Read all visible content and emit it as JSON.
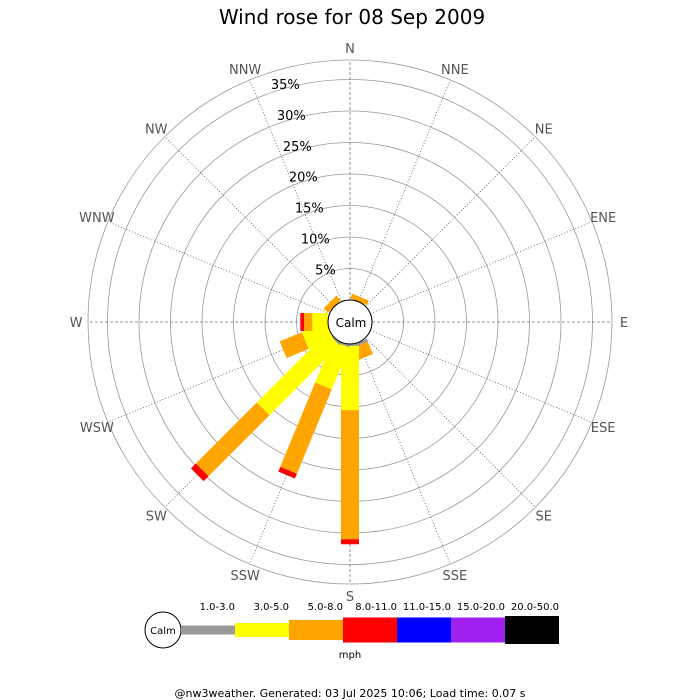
{
  "chart_data": {
    "type": "wind-rose",
    "title": "Wind rose for 08 Sep 2009",
    "directions": [
      "N",
      "NNE",
      "NE",
      "ENE",
      "E",
      "ESE",
      "SE",
      "SSE",
      "S",
      "SSW",
      "SW",
      "WSW",
      "W",
      "WNW",
      "NW",
      "NNW"
    ],
    "radial_ticks": [
      "5%",
      "10%",
      "15%",
      "20%",
      "25%",
      "30%",
      "35%"
    ],
    "radial_values": [
      5,
      10,
      15,
      20,
      25,
      30,
      35
    ],
    "calm_label": "Calm",
    "bins": [
      {
        "label": "1.0-3.0",
        "color": "#999999"
      },
      {
        "label": "3.0-5.0",
        "color": "#ffff00"
      },
      {
        "label": "5.0-8.0",
        "color": "#ffa500"
      },
      {
        "label": "8.0-11.0",
        "color": "#ff0000"
      },
      {
        "label": "11.0-15.0",
        "color": "#0000ff"
      },
      {
        "label": "15.0-20.0",
        "color": "#a020f0"
      },
      {
        "label": "20.0-50.0",
        "color": "#000000"
      }
    ],
    "units": "mph",
    "series": [
      {
        "dir": "N",
        "cum": [
          0,
          0,
          0,
          0,
          0,
          0,
          0
        ]
      },
      {
        "dir": "NNE",
        "cum": [
          0,
          0,
          0.8,
          0.8,
          0.8,
          0.8,
          0.8
        ]
      },
      {
        "dir": "NE",
        "cum": [
          0,
          0,
          0,
          0,
          0,
          0,
          0
        ]
      },
      {
        "dir": "ENE",
        "cum": [
          0,
          0,
          0,
          0,
          0,
          0,
          0
        ]
      },
      {
        "dir": "E",
        "cum": [
          0,
          0,
          0,
          0,
          0,
          0,
          0
        ]
      },
      {
        "dir": "ESE",
        "cum": [
          0,
          0,
          0,
          0,
          0,
          0,
          0
        ]
      },
      {
        "dir": "SE",
        "cum": [
          0,
          0,
          0,
          0,
          0,
          0,
          0
        ]
      },
      {
        "dir": "SSE",
        "cum": [
          0.5,
          0.5,
          2.6,
          2.6,
          2.6,
          2.6,
          2.6
        ]
      },
      {
        "dir": "S",
        "cum": [
          0.3,
          10.5,
          31.0,
          31.8,
          31.8,
          31.8,
          31.8
        ]
      },
      {
        "dir": "SSW",
        "cum": [
          0.3,
          7.5,
          22.0,
          22.8,
          22.8,
          22.8,
          22.8
        ]
      },
      {
        "dir": "SW",
        "cum": [
          0.3,
          16.0,
          29.7,
          30.8,
          30.8,
          30.8,
          30.8
        ]
      },
      {
        "dir": "WSW",
        "cum": [
          0,
          4.2,
          8.0,
          8.0,
          8.0,
          8.0,
          8.0
        ]
      },
      {
        "dir": "W",
        "cum": [
          0,
          2.5,
          3.8,
          4.4,
          4.4,
          4.4,
          4.4
        ]
      },
      {
        "dir": "WNW",
        "cum": [
          0,
          0,
          0,
          0,
          0,
          0,
          0
        ]
      },
      {
        "dir": "NW",
        "cum": [
          0,
          0,
          1.0,
          1.0,
          1.0,
          1.0,
          1.0
        ]
      },
      {
        "dir": "NNW",
        "cum": [
          0,
          0,
          0,
          0,
          0,
          0,
          0
        ]
      }
    ]
  },
  "footer": "@nw3weather. Generated: 03 Jul 2025 10:06; Load time: 0.07 s"
}
